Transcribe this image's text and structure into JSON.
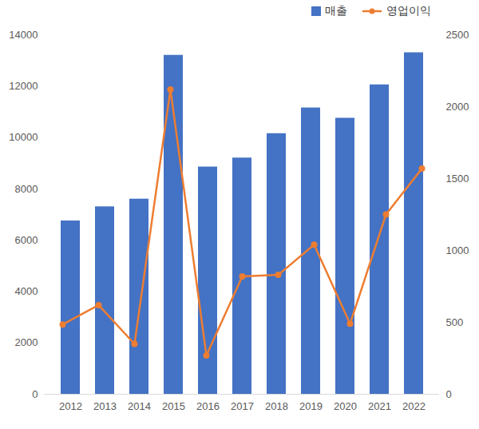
{
  "chart_data": {
    "type": "bar",
    "categories": [
      "2012",
      "2013",
      "2014",
      "2015",
      "2016",
      "2017",
      "2018",
      "2019",
      "2020",
      "2021",
      "2022"
    ],
    "series": [
      {
        "name": "매출",
        "type": "bar",
        "color": "#4472c4",
        "values": [
          6750,
          7300,
          7600,
          13200,
          8850,
          9200,
          10150,
          11150,
          10750,
          12050,
          13300
        ]
      },
      {
        "name": "영업이익",
        "type": "line",
        "color": "#ed7d31",
        "marker": "circle",
        "axis": "y2",
        "values": [
          485,
          620,
          350,
          2120,
          270,
          820,
          830,
          1040,
          490,
          1250,
          1570
        ]
      }
    ],
    "ylim": [
      0,
      14000
    ],
    "yticks": [
      0,
      2000,
      4000,
      6000,
      8000,
      10000,
      12000,
      14000
    ],
    "y2lim": [
      0,
      2500
    ],
    "y2ticks": [
      0,
      500,
      1000,
      1500,
      2000,
      2500
    ],
    "legend": "top",
    "grid": false
  }
}
